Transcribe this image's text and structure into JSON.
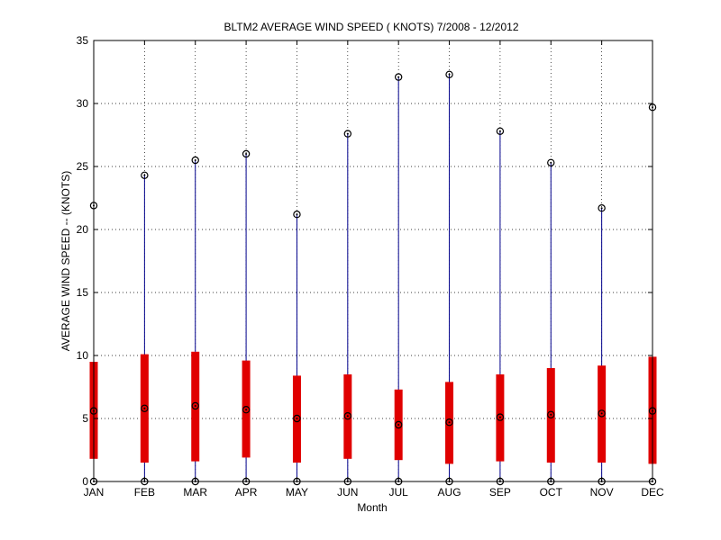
{
  "chart_data": {
    "type": "box",
    "title": "BLTM2  AVERAGE WIND SPEED ( KNOTS) 7/2008 - 12/2012",
    "xlabel": "Month",
    "ylabel": "AVERAGE WIND SPEED -- (KNOTS)",
    "ylim": [
      0,
      35
    ],
    "yticks": [
      "0",
      "5",
      "10",
      "15",
      "20",
      "25",
      "30",
      "35"
    ],
    "grid": true,
    "categories": [
      "JAN",
      "FEB",
      "MAR",
      "APR",
      "MAY",
      "JUN",
      "JUL",
      "AUG",
      "SEP",
      "OCT",
      "NOV",
      "DEC"
    ],
    "min": [
      0,
      0,
      0,
      0,
      0,
      0,
      0,
      0,
      0,
      0,
      0,
      0
    ],
    "q1": [
      1.8,
      1.5,
      1.6,
      1.9,
      1.5,
      1.8,
      1.7,
      1.4,
      1.6,
      1.5,
      1.5,
      1.4
    ],
    "median": [
      5.6,
      5.8,
      6.0,
      5.7,
      5.0,
      5.2,
      4.5,
      4.7,
      5.1,
      5.3,
      5.4,
      5.6
    ],
    "q3": [
      9.5,
      10.1,
      10.3,
      9.6,
      8.4,
      8.5,
      7.3,
      7.9,
      8.5,
      9.0,
      9.2,
      9.9
    ],
    "max": [
      21.9,
      24.3,
      25.5,
      26.0,
      21.2,
      27.6,
      32.1,
      32.3,
      27.8,
      25.3,
      21.7,
      29.7
    ],
    "colors": {
      "box": "#e00000",
      "whisker": "#00008b",
      "marker": "#000000",
      "grid": "#000000"
    }
  }
}
